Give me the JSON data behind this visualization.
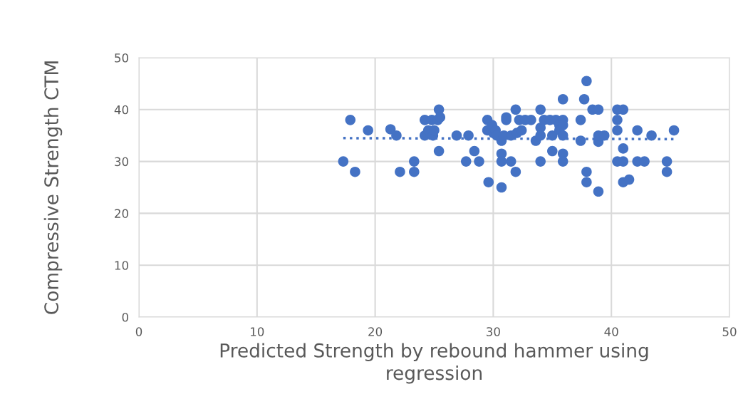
{
  "chart_data": {
    "type": "scatter",
    "xlabel": "Predicted Strength by rebound hammer using\nregression",
    "ylabel": "Compressive Strength CTM",
    "xlim": [
      0,
      50
    ],
    "ylim": [
      0,
      50
    ],
    "xticks": [
      0,
      10,
      20,
      30,
      40,
      50
    ],
    "yticks": [
      0,
      10,
      20,
      30,
      40,
      50
    ],
    "grid": true,
    "marker": "circle",
    "series": [
      {
        "color": "#4472c4",
        "x": [
          17.3,
          17.9,
          18.3,
          19.4,
          21.3,
          21.8,
          22.1,
          23.3,
          23.3,
          24.2,
          24.2,
          24.5,
          24.8,
          24.9,
          25.0,
          25.3,
          25.4,
          25.5,
          25.4,
          26.9,
          27.7,
          27.9,
          28.4,
          28.8,
          29.5,
          29.5,
          29.6,
          29.9,
          30.0,
          30.2,
          30.3,
          30.7,
          30.7,
          30.7,
          30.7,
          30.9,
          31.1,
          31.1,
          31.5,
          31.5,
          31.9,
          31.9,
          32.0,
          32.2,
          32.4,
          32.7,
          33.2,
          33.6,
          34.0,
          34.0,
          34.0,
          34.0,
          34.3,
          34.8,
          35.0,
          35.0,
          35.3,
          35.6,
          35.6,
          35.9,
          35.9,
          35.9,
          35.9,
          35.9,
          35.9,
          37.4,
          37.4,
          37.7,
          37.9,
          37.9,
          37.9,
          38.4,
          38.9,
          38.9,
          38.9,
          38.9,
          39.4,
          40.5,
          40.5,
          40.5,
          40.5,
          41.0,
          41.0,
          41.0,
          41.0,
          41.5,
          42.2,
          42.2,
          42.8,
          43.4,
          44.7,
          44.7,
          45.3
        ],
        "values": [
          30,
          38,
          28,
          36,
          36.2,
          35,
          28,
          30,
          28,
          38,
          35,
          36,
          38,
          35,
          36,
          38,
          40,
          38.5,
          32,
          35,
          30,
          35,
          32,
          30,
          38,
          36,
          26,
          37,
          35.5,
          36,
          35,
          34,
          31.5,
          30,
          25,
          35,
          38,
          38.5,
          30,
          35,
          40,
          28,
          35.5,
          38,
          36,
          38,
          38,
          34,
          36.5,
          35,
          40,
          30,
          38,
          38,
          35,
          32,
          38,
          37,
          36,
          38,
          37,
          35,
          31.5,
          30,
          42,
          38,
          34,
          42,
          45.5,
          28,
          26,
          40,
          24.2,
          40,
          33.8,
          35,
          35,
          40,
          38,
          36,
          30,
          40,
          32.5,
          30,
          26,
          26.5,
          36,
          30,
          30,
          35,
          30,
          28,
          36
        ]
      },
      {
        "type": "line",
        "color": "#4472c4",
        "line_style": "dotted",
        "marker": "none",
        "x": [
          17.3,
          45.3
        ],
        "values": [
          34.5,
          34.3
        ]
      }
    ]
  }
}
